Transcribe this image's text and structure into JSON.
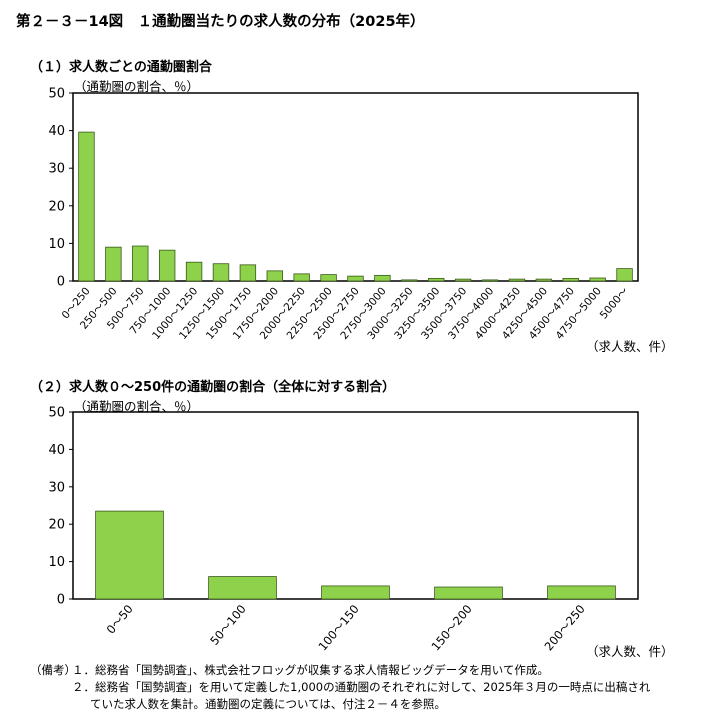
{
  "title": "第２－３－14図　１通勤圏当たりの求人数の分布（2025年）",
  "colors": {
    "bar": "#8ed14a",
    "bar_edge": "#3a5a1a",
    "frame": "#000000"
  },
  "notes": {
    "label": "（備考）",
    "items": [
      "１．総務省「国勢調査」、株式会社フロッグが収集する求人情報ビッグデータを用いて作成。",
      "２．総務省「国勢調査」を用いて定義した1,000の通勤圏のそれぞれに対して、2025年３月の一時点に出稿され"
    ],
    "continuation": "ていた求人数を集計。通勤圏の定義については、付注２－４を参照。"
  },
  "chart_data": [
    {
      "type": "bar",
      "subtitle": "（１）求人数ごとの通勤圏割合",
      "ylabel": "（通勤圏の割合、％）",
      "xlabel": "（求人数、件）",
      "ylim": [
        0,
        50
      ],
      "yticks": [
        0,
        10,
        20,
        30,
        40,
        50
      ],
      "grid": false,
      "categories": [
        "0～250",
        "250～500",
        "500～750",
        "750～1000",
        "1000～1250",
        "1250～1500",
        "1500～1750",
        "1750～2000",
        "2000～2250",
        "2250～2500",
        "2500～2750",
        "2750～3000",
        "3000～3250",
        "3250～3500",
        "3500～3750",
        "3750～4000",
        "4000～4250",
        "4250～4500",
        "4500～4750",
        "4750～5000",
        "5000～"
      ],
      "values": [
        39.6,
        9.0,
        9.3,
        8.2,
        5.0,
        4.6,
        4.3,
        2.7,
        1.9,
        1.7,
        1.3,
        1.5,
        0.3,
        0.7,
        0.5,
        0.3,
        0.5,
        0.5,
        0.7,
        0.8,
        3.3
      ]
    },
    {
      "type": "bar",
      "subtitle": "（２）求人数０～250件の通勤圏の割合（全体に対する割合）",
      "ylabel": "（通勤圏の割合、％）",
      "xlabel": "（求人数、件）",
      "ylim": [
        0,
        50
      ],
      "yticks": [
        0,
        10,
        20,
        30,
        40,
        50
      ],
      "grid": false,
      "categories": [
        "0～50",
        "50～100",
        "100～150",
        "150～200",
        "200～250"
      ],
      "values": [
        23.5,
        6.0,
        3.5,
        3.2,
        3.5
      ]
    }
  ]
}
